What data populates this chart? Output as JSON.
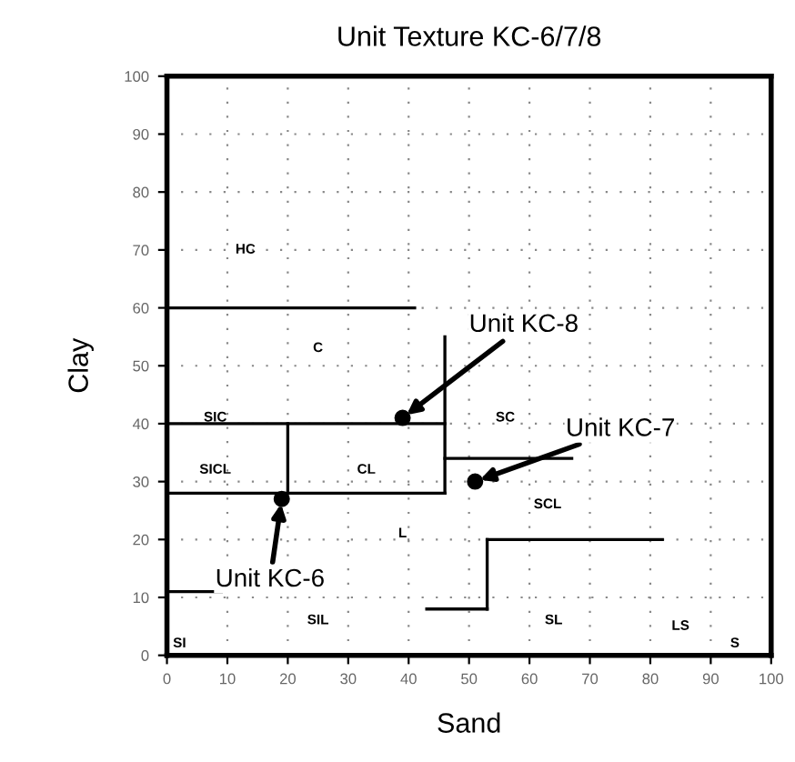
{
  "chart_data": {
    "type": "scatter",
    "title": "Unit Texture KC-6/7/8",
    "xlabel": "Sand",
    "ylabel": "Clay",
    "xlim": [
      0,
      100
    ],
    "ylim": [
      0,
      100
    ],
    "xticks": [
      0,
      10,
      20,
      30,
      40,
      50,
      60,
      70,
      80,
      90,
      100
    ],
    "yticks": [
      0,
      10,
      20,
      30,
      40,
      50,
      60,
      70,
      80,
      90,
      100
    ],
    "grid": true,
    "series": [
      {
        "color": "#000000",
        "marker": "circle",
        "x": [
          39,
          51,
          19
        ],
        "values": [
          41,
          30,
          27
        ]
      },
      {
        "type": "line",
        "color": "#000000",
        "x": [
          0,
          41
        ],
        "values": [
          60,
          60
        ]
      },
      {
        "type": "line",
        "color": "#000000",
        "x": [
          0,
          46
        ],
        "values": [
          40,
          40
        ]
      },
      {
        "type": "line",
        "color": "#000000",
        "x": [
          0,
          46
        ],
        "values": [
          28,
          28
        ]
      },
      {
        "type": "line",
        "color": "#000000",
        "x": [
          20,
          20
        ],
        "values": [
          28,
          40
        ]
      },
      {
        "type": "line",
        "color": "#000000",
        "x": [
          46,
          46
        ],
        "values": [
          28,
          55
        ]
      },
      {
        "type": "line",
        "color": "#000000",
        "x": [
          46,
          67
        ],
        "values": [
          34,
          34
        ]
      },
      {
        "type": "line",
        "color": "#000000",
        "x": [
          53,
          82
        ],
        "values": [
          20,
          20
        ]
      },
      {
        "type": "line",
        "color": "#000000",
        "x": [
          53,
          53
        ],
        "values": [
          8,
          20
        ]
      },
      {
        "type": "line",
        "color": "#000000",
        "x": [
          43,
          53
        ],
        "values": [
          8,
          8
        ]
      },
      {
        "type": "line",
        "color": "#000000",
        "x": [
          0,
          9
        ],
        "values": [
          11,
          11
        ]
      }
    ],
    "annotations": [
      {
        "text": "Unit KC-8",
        "x": 39,
        "y": 41
      },
      {
        "text": "Unit KC-7",
        "x": 51,
        "y": 30
      },
      {
        "text": "Unit KC-6",
        "x": 19,
        "y": 27
      },
      "HC",
      "C",
      "SIC",
      "SICL",
      "CL",
      "SC",
      "SCL",
      "L",
      "SIL",
      "SL",
      "LS",
      "SI",
      "S"
    ]
  }
}
